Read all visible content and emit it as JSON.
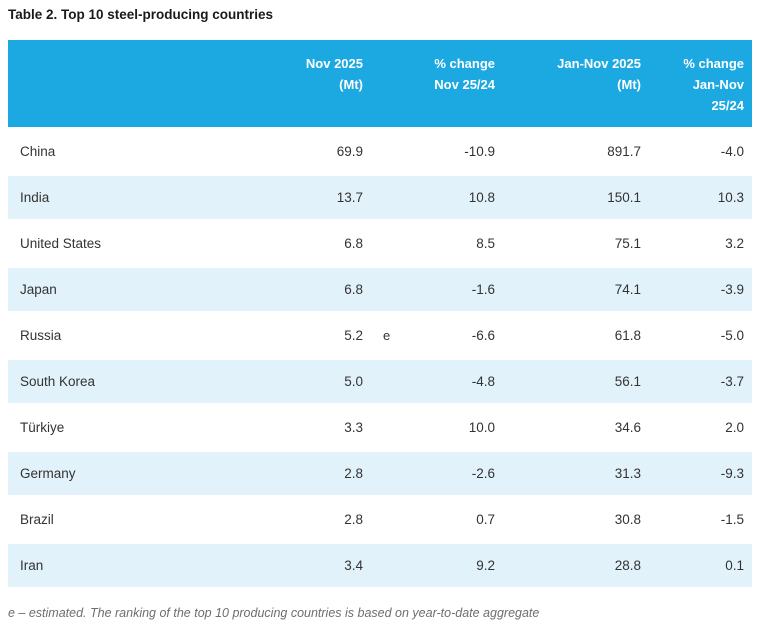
{
  "title": "Table 2. Top 10 steel-producing countries",
  "colors": {
    "header_bg": "#1CA9E2",
    "row_alt_bg": "#E2F2FA",
    "text": "#333333",
    "title_text": "#1A1A1A",
    "footnote_text": "#6E6E6E"
  },
  "table": {
    "columns": [
      {
        "label": ""
      },
      {
        "label": "Nov 2025\n(Mt)"
      },
      {
        "label": ""
      },
      {
        "label": "% change\nNov 25/24"
      },
      {
        "label": "Jan-Nov 2025\n(Mt)"
      },
      {
        "label": "% change\nJan-Nov\n25/24"
      }
    ],
    "rows": [
      {
        "country": "China",
        "nov_mt": "69.9",
        "marker": "",
        "pct_nov": "-10.9",
        "jannov_mt": "891.7",
        "pct_jannov": "-4.0"
      },
      {
        "country": "India",
        "nov_mt": "13.7",
        "marker": "",
        "pct_nov": "10.8",
        "jannov_mt": "150.1",
        "pct_jannov": "10.3"
      },
      {
        "country": "United States",
        "nov_mt": "6.8",
        "marker": "",
        "pct_nov": "8.5",
        "jannov_mt": "75.1",
        "pct_jannov": "3.2"
      },
      {
        "country": "Japan",
        "nov_mt": "6.8",
        "marker": "",
        "pct_nov": "-1.6",
        "jannov_mt": "74.1",
        "pct_jannov": "-3.9"
      },
      {
        "country": "Russia",
        "nov_mt": "5.2",
        "marker": "e",
        "pct_nov": "-6.6",
        "jannov_mt": "61.8",
        "pct_jannov": "-5.0"
      },
      {
        "country": "South Korea",
        "nov_mt": "5.0",
        "marker": "",
        "pct_nov": "-4.8",
        "jannov_mt": "56.1",
        "pct_jannov": "-3.7"
      },
      {
        "country": "Türkiye",
        "nov_mt": "3.3",
        "marker": "",
        "pct_nov": "10.0",
        "jannov_mt": "34.6",
        "pct_jannov": "2.0"
      },
      {
        "country": "Germany",
        "nov_mt": "2.8",
        "marker": "",
        "pct_nov": "-2.6",
        "jannov_mt": "31.3",
        "pct_jannov": "-9.3"
      },
      {
        "country": "Brazil",
        "nov_mt": "2.8",
        "marker": "",
        "pct_nov": "0.7",
        "jannov_mt": "30.8",
        "pct_jannov": "-1.5"
      },
      {
        "country": "Iran",
        "nov_mt": "3.4",
        "marker": "",
        "pct_nov": "9.2",
        "jannov_mt": "28.8",
        "pct_jannov": "0.1"
      }
    ]
  },
  "footnote": "e – estimated. The ranking of the top 10 producing countries is based on year-to-date aggregate"
}
